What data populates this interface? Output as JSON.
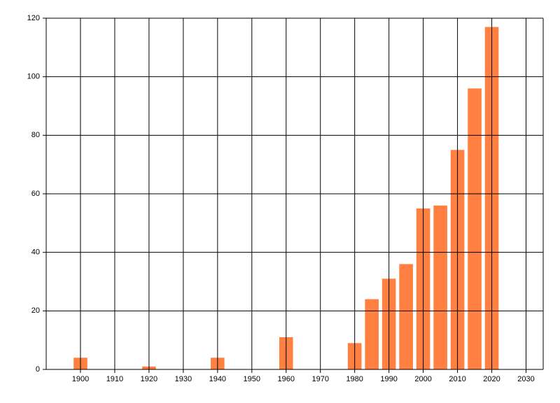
{
  "chart_data": {
    "type": "bar",
    "x": [
      1900,
      1920,
      1940,
      1960,
      1980,
      1985,
      1990,
      1995,
      2000,
      2005,
      2010,
      2015,
      2020
    ],
    "values": [
      4,
      1,
      4,
      11,
      9,
      24,
      31,
      36,
      55,
      56,
      75,
      96,
      117
    ],
    "color": "#ff8040",
    "xlim": [
      1890,
      2035
    ],
    "xticks": [
      1900,
      1910,
      1920,
      1930,
      1940,
      1950,
      1960,
      1970,
      1980,
      1990,
      2000,
      2010,
      2020,
      2030
    ],
    "ylim": [
      0,
      120
    ],
    "yticks": [
      0,
      20,
      40,
      60,
      80,
      100,
      120
    ],
    "grid": true
  }
}
